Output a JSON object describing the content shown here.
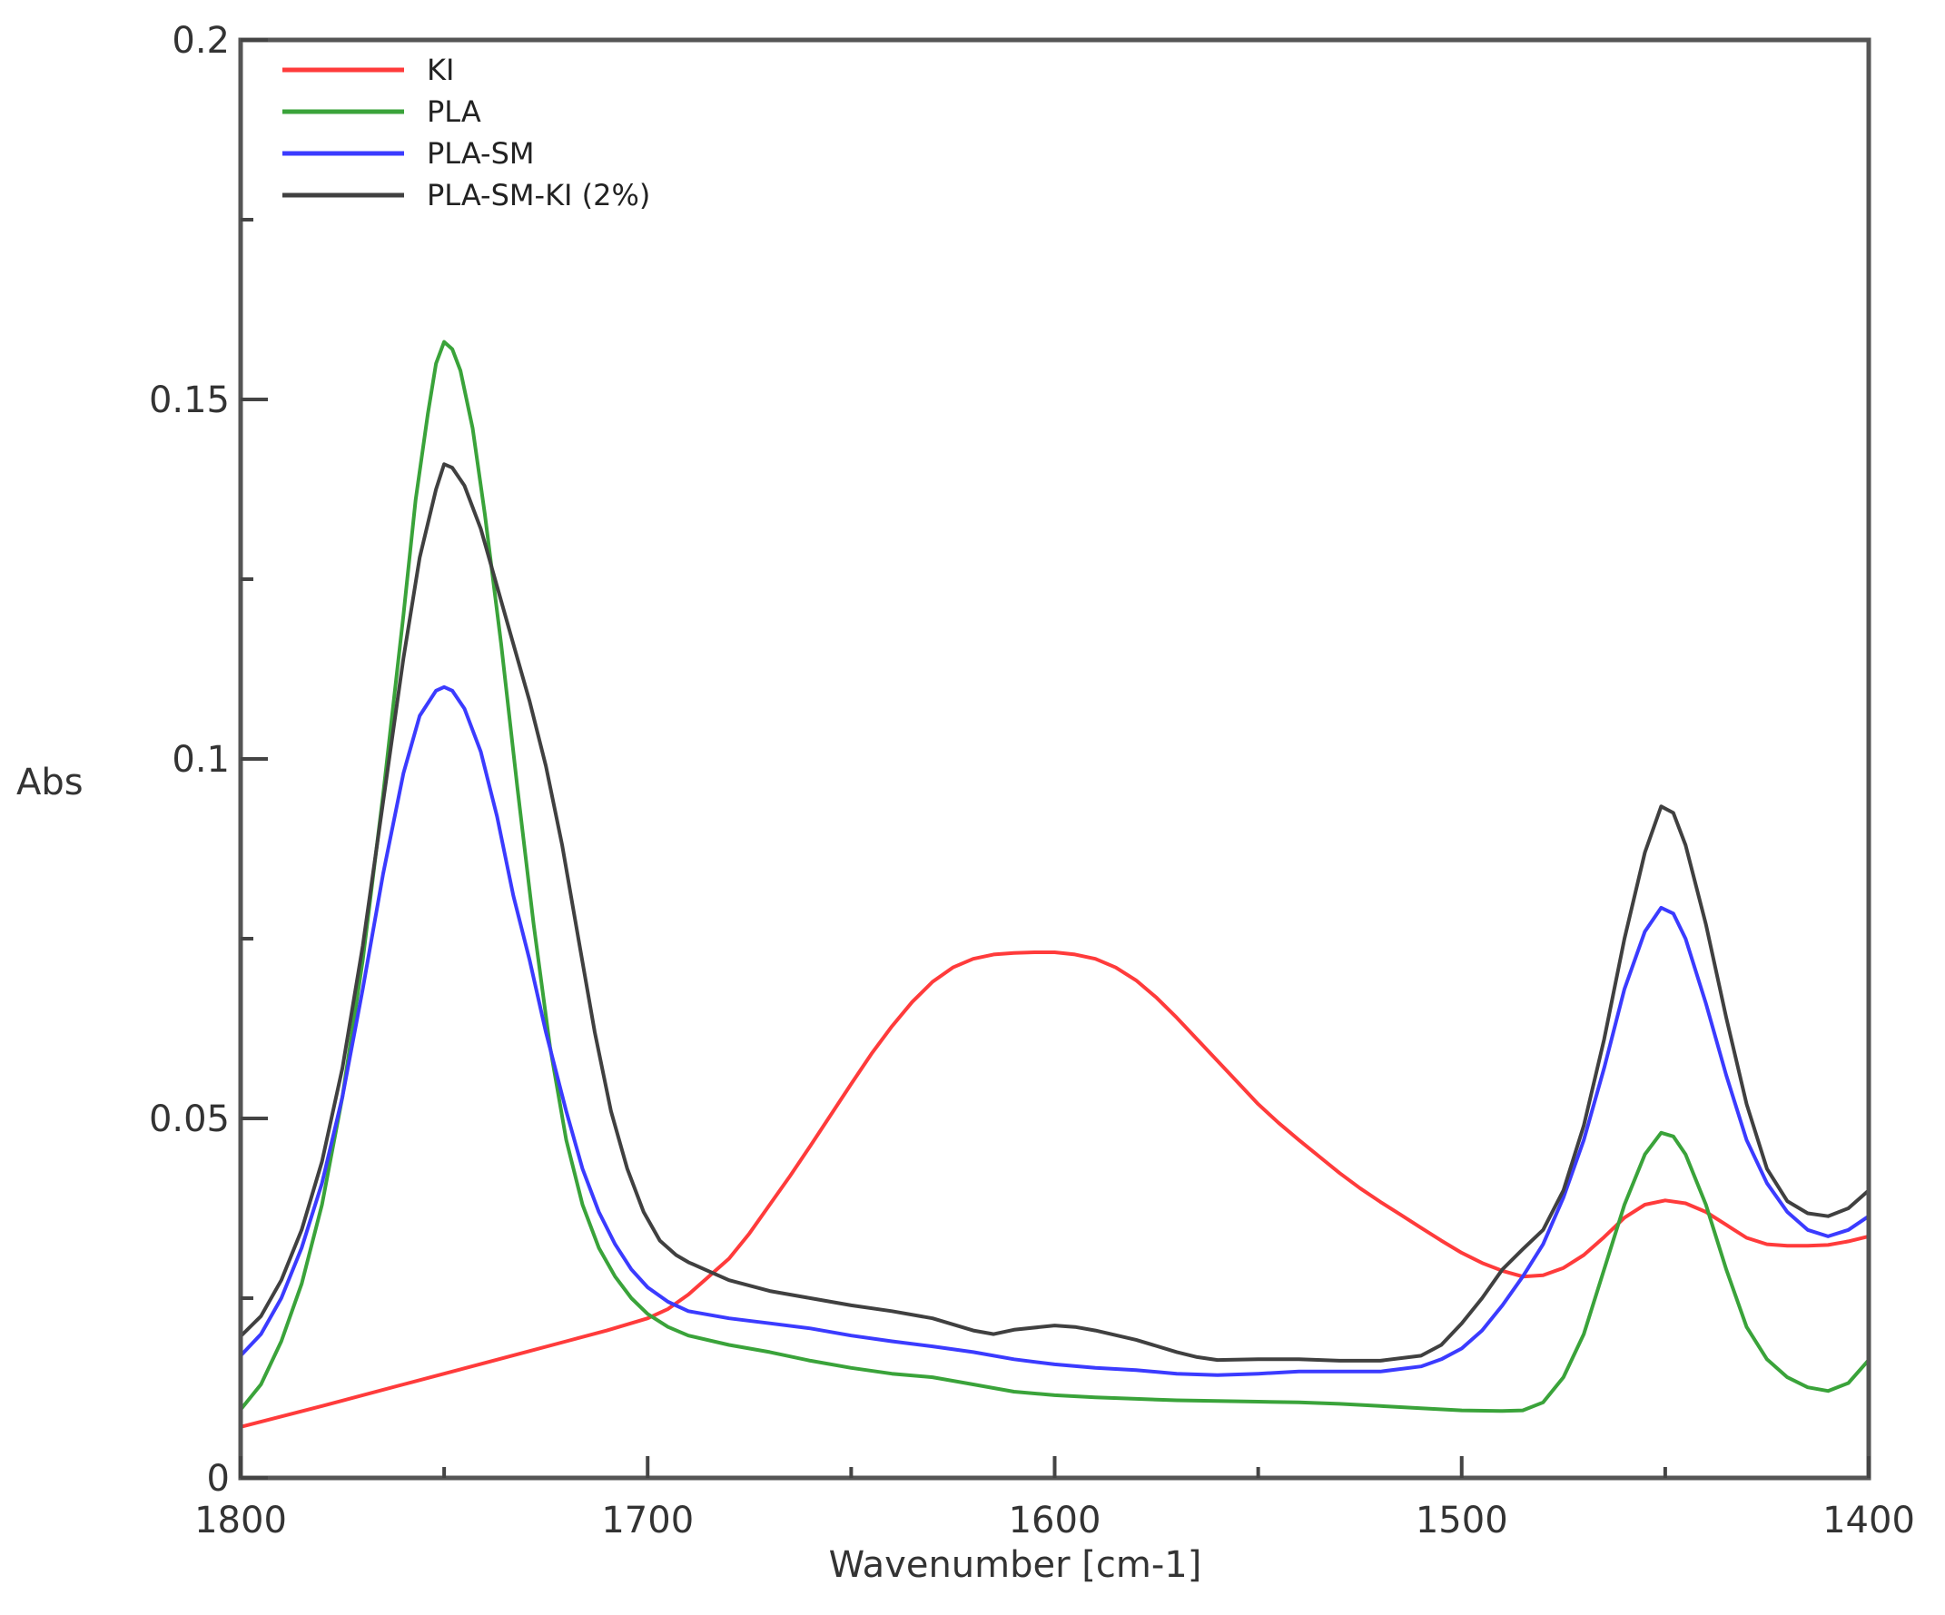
{
  "chart_data": {
    "type": "line",
    "title": "",
    "xlabel": "Wavenumber [cm-1]",
    "ylabel": "Abs",
    "xlim": [
      1800,
      1400
    ],
    "ylim": [
      0,
      0.2
    ],
    "x_reversed": true,
    "grid": false,
    "legend_position": "upper-left",
    "x_ticks": [
      1800,
      1700,
      1600,
      1500,
      1400
    ],
    "x_tick_labels": [
      "1800",
      "1700",
      "1600",
      "1500",
      "1400"
    ],
    "x_minor_ticks": [
      1750,
      1650,
      1550,
      1450
    ],
    "y_ticks": [
      0,
      0.05,
      0.1,
      0.15,
      0.2
    ],
    "y_tick_labels": [
      "0",
      "0.05",
      "0.1",
      "0.15",
      "0.2"
    ],
    "y_minor_ticks": [
      0.025,
      0.075,
      0.125,
      0.175
    ],
    "series": [
      {
        "name": "KI",
        "color": "#ff3b3b",
        "points": [
          [
            1800,
            0.0071
          ],
          [
            1780,
            0.01
          ],
          [
            1760,
            0.013
          ],
          [
            1750,
            0.0145
          ],
          [
            1740,
            0.016
          ],
          [
            1730,
            0.0175
          ],
          [
            1720,
            0.019
          ],
          [
            1710,
            0.0205
          ],
          [
            1700,
            0.0222
          ],
          [
            1695,
            0.0235
          ],
          [
            1690,
            0.0255
          ],
          [
            1685,
            0.028
          ],
          [
            1680,
            0.0305
          ],
          [
            1675,
            0.034
          ],
          [
            1670,
            0.038
          ],
          [
            1665,
            0.042
          ],
          [
            1660,
            0.0462
          ],
          [
            1655,
            0.0505
          ],
          [
            1650,
            0.0548
          ],
          [
            1645,
            0.059
          ],
          [
            1640,
            0.0628
          ],
          [
            1635,
            0.0662
          ],
          [
            1630,
            0.069
          ],
          [
            1625,
            0.071
          ],
          [
            1620,
            0.0722
          ],
          [
            1615,
            0.0728
          ],
          [
            1610,
            0.073
          ],
          [
            1605,
            0.0731
          ],
          [
            1600,
            0.0731
          ],
          [
            1595,
            0.0728
          ],
          [
            1590,
            0.0722
          ],
          [
            1585,
            0.071
          ],
          [
            1580,
            0.0692
          ],
          [
            1575,
            0.0668
          ],
          [
            1570,
            0.064
          ],
          [
            1565,
            0.061
          ],
          [
            1560,
            0.058
          ],
          [
            1555,
            0.055
          ],
          [
            1550,
            0.052
          ],
          [
            1545,
            0.0494
          ],
          [
            1540,
            0.047
          ],
          [
            1535,
            0.0447
          ],
          [
            1530,
            0.0424
          ],
          [
            1525,
            0.0403
          ],
          [
            1520,
            0.0384
          ],
          [
            1515,
            0.0366
          ],
          [
            1510,
            0.0348
          ],
          [
            1505,
            0.033
          ],
          [
            1500,
            0.0313
          ],
          [
            1495,
            0.0299
          ],
          [
            1490,
            0.0288
          ],
          [
            1485,
            0.028
          ],
          [
            1480,
            0.0282
          ],
          [
            1475,
            0.0292
          ],
          [
            1470,
            0.031
          ],
          [
            1465,
            0.0335
          ],
          [
            1460,
            0.0362
          ],
          [
            1455,
            0.038
          ],
          [
            1450,
            0.0386
          ],
          [
            1445,
            0.0382
          ],
          [
            1440,
            0.037
          ],
          [
            1435,
            0.0352
          ],
          [
            1430,
            0.0334
          ],
          [
            1425,
            0.0325
          ],
          [
            1420,
            0.0323
          ],
          [
            1415,
            0.0323
          ],
          [
            1410,
            0.0324
          ],
          [
            1405,
            0.0329
          ],
          [
            1400,
            0.0336
          ]
        ]
      },
      {
        "name": "PLA",
        "color": "#3aa33a",
        "points": [
          [
            1800,
            0.0095
          ],
          [
            1795,
            0.013
          ],
          [
            1790,
            0.019
          ],
          [
            1785,
            0.027
          ],
          [
            1780,
            0.038
          ],
          [
            1775,
            0.053
          ],
          [
            1770,
            0.072
          ],
          [
            1765,
            0.095
          ],
          [
            1760,
            0.12
          ],
          [
            1757,
            0.136
          ],
          [
            1754,
            0.148
          ],
          [
            1752,
            0.155
          ],
          [
            1750,
            0.158
          ],
          [
            1748,
            0.157
          ],
          [
            1746,
            0.154
          ],
          [
            1743,
            0.146
          ],
          [
            1740,
            0.134
          ],
          [
            1736,
            0.116
          ],
          [
            1732,
            0.096
          ],
          [
            1728,
            0.077
          ],
          [
            1724,
            0.06
          ],
          [
            1720,
            0.047
          ],
          [
            1716,
            0.038
          ],
          [
            1712,
            0.032
          ],
          [
            1708,
            0.028
          ],
          [
            1704,
            0.025
          ],
          [
            1700,
            0.0228
          ],
          [
            1695,
            0.021
          ],
          [
            1690,
            0.0198
          ],
          [
            1680,
            0.0185
          ],
          [
            1670,
            0.0175
          ],
          [
            1660,
            0.0163
          ],
          [
            1650,
            0.0153
          ],
          [
            1640,
            0.0145
          ],
          [
            1630,
            0.014
          ],
          [
            1620,
            0.013
          ],
          [
            1610,
            0.012
          ],
          [
            1600,
            0.0115
          ],
          [
            1590,
            0.0112
          ],
          [
            1580,
            0.011
          ],
          [
            1570,
            0.0108
          ],
          [
            1560,
            0.0107
          ],
          [
            1550,
            0.0106
          ],
          [
            1540,
            0.0105
          ],
          [
            1530,
            0.0103
          ],
          [
            1520,
            0.01
          ],
          [
            1510,
            0.0097
          ],
          [
            1500,
            0.0094
          ],
          [
            1490,
            0.0093
          ],
          [
            1485,
            0.0094
          ],
          [
            1480,
            0.0105
          ],
          [
            1475,
            0.014
          ],
          [
            1470,
            0.02
          ],
          [
            1465,
            0.029
          ],
          [
            1460,
            0.038
          ],
          [
            1455,
            0.045
          ],
          [
            1451,
            0.048
          ],
          [
            1448,
            0.0475
          ],
          [
            1445,
            0.045
          ],
          [
            1440,
            0.038
          ],
          [
            1435,
            0.029
          ],
          [
            1430,
            0.021
          ],
          [
            1425,
            0.0165
          ],
          [
            1420,
            0.014
          ],
          [
            1415,
            0.0126
          ],
          [
            1410,
            0.0121
          ],
          [
            1405,
            0.0132
          ],
          [
            1400,
            0.0164
          ]
        ]
      },
      {
        "name": "PLA-SM",
        "color": "#3b3bff",
        "points": [
          [
            1800,
            0.017
          ],
          [
            1795,
            0.02
          ],
          [
            1790,
            0.025
          ],
          [
            1785,
            0.032
          ],
          [
            1780,
            0.041
          ],
          [
            1775,
            0.053
          ],
          [
            1770,
            0.068
          ],
          [
            1765,
            0.084
          ],
          [
            1760,
            0.098
          ],
          [
            1756,
            0.106
          ],
          [
            1752,
            0.1095
          ],
          [
            1750,
            0.11
          ],
          [
            1748,
            0.1095
          ],
          [
            1745,
            0.107
          ],
          [
            1741,
            0.101
          ],
          [
            1737,
            0.092
          ],
          [
            1733,
            0.081
          ],
          [
            1729,
            0.072
          ],
          [
            1725,
            0.062
          ],
          [
            1720,
            0.051
          ],
          [
            1716,
            0.043
          ],
          [
            1712,
            0.037
          ],
          [
            1708,
            0.0325
          ],
          [
            1704,
            0.029
          ],
          [
            1700,
            0.0265
          ],
          [
            1695,
            0.0245
          ],
          [
            1690,
            0.0232
          ],
          [
            1680,
            0.0222
          ],
          [
            1670,
            0.0215
          ],
          [
            1660,
            0.0208
          ],
          [
            1650,
            0.0198
          ],
          [
            1640,
            0.019
          ],
          [
            1630,
            0.0183
          ],
          [
            1620,
            0.0175
          ],
          [
            1610,
            0.0165
          ],
          [
            1600,
            0.0158
          ],
          [
            1590,
            0.0153
          ],
          [
            1580,
            0.015
          ],
          [
            1570,
            0.0145
          ],
          [
            1560,
            0.0143
          ],
          [
            1550,
            0.0145
          ],
          [
            1540,
            0.0148
          ],
          [
            1530,
            0.0148
          ],
          [
            1520,
            0.0148
          ],
          [
            1510,
            0.0155
          ],
          [
            1505,
            0.0165
          ],
          [
            1500,
            0.018
          ],
          [
            1495,
            0.0205
          ],
          [
            1490,
            0.024
          ],
          [
            1485,
            0.028
          ],
          [
            1480,
            0.0325
          ],
          [
            1475,
            0.039
          ],
          [
            1470,
            0.047
          ],
          [
            1465,
            0.057
          ],
          [
            1460,
            0.068
          ],
          [
            1455,
            0.076
          ],
          [
            1451,
            0.0793
          ],
          [
            1448,
            0.0785
          ],
          [
            1445,
            0.075
          ],
          [
            1440,
            0.066
          ],
          [
            1435,
            0.056
          ],
          [
            1430,
            0.047
          ],
          [
            1425,
            0.041
          ],
          [
            1420,
            0.037
          ],
          [
            1415,
            0.0345
          ],
          [
            1410,
            0.0336
          ],
          [
            1405,
            0.0345
          ],
          [
            1400,
            0.0364
          ]
        ]
      },
      {
        "name": "PLA-SM-KI (2%)",
        "color": "#404040",
        "points": [
          [
            1800,
            0.0197
          ],
          [
            1795,
            0.0225
          ],
          [
            1790,
            0.0275
          ],
          [
            1785,
            0.0345
          ],
          [
            1780,
            0.044
          ],
          [
            1775,
            0.057
          ],
          [
            1770,
            0.074
          ],
          [
            1765,
            0.094
          ],
          [
            1760,
            0.114
          ],
          [
            1756,
            0.128
          ],
          [
            1752,
            0.1375
          ],
          [
            1750,
            0.141
          ],
          [
            1748,
            0.1405
          ],
          [
            1745,
            0.138
          ],
          [
            1741,
            0.132
          ],
          [
            1737,
            0.124
          ],
          [
            1733,
            0.116
          ],
          [
            1729,
            0.108
          ],
          [
            1725,
            0.099
          ],
          [
            1721,
            0.088
          ],
          [
            1717,
            0.075
          ],
          [
            1713,
            0.062
          ],
          [
            1709,
            0.051
          ],
          [
            1705,
            0.043
          ],
          [
            1701,
            0.037
          ],
          [
            1697,
            0.033
          ],
          [
            1693,
            0.031
          ],
          [
            1690,
            0.03
          ],
          [
            1680,
            0.0275
          ],
          [
            1670,
            0.026
          ],
          [
            1660,
            0.025
          ],
          [
            1650,
            0.024
          ],
          [
            1640,
            0.0232
          ],
          [
            1630,
            0.0222
          ],
          [
            1620,
            0.0205
          ],
          [
            1615,
            0.02
          ],
          [
            1610,
            0.0206
          ],
          [
            1600,
            0.0212
          ],
          [
            1595,
            0.021
          ],
          [
            1590,
            0.0205
          ],
          [
            1580,
            0.0192
          ],
          [
            1570,
            0.0175
          ],
          [
            1565,
            0.0168
          ],
          [
            1560,
            0.0164
          ],
          [
            1550,
            0.0165
          ],
          [
            1540,
            0.0165
          ],
          [
            1530,
            0.0163
          ],
          [
            1520,
            0.0163
          ],
          [
            1510,
            0.017
          ],
          [
            1505,
            0.0185
          ],
          [
            1500,
            0.0215
          ],
          [
            1495,
            0.025
          ],
          [
            1490,
            0.029
          ],
          [
            1485,
            0.0318
          ],
          [
            1480,
            0.0345
          ],
          [
            1475,
            0.04
          ],
          [
            1470,
            0.049
          ],
          [
            1465,
            0.061
          ],
          [
            1460,
            0.075
          ],
          [
            1455,
            0.087
          ],
          [
            1451,
            0.0934
          ],
          [
            1448,
            0.0925
          ],
          [
            1445,
            0.088
          ],
          [
            1440,
            0.077
          ],
          [
            1435,
            0.064
          ],
          [
            1430,
            0.052
          ],
          [
            1425,
            0.043
          ],
          [
            1420,
            0.0385
          ],
          [
            1415,
            0.0368
          ],
          [
            1410,
            0.0364
          ],
          [
            1405,
            0.0375
          ],
          [
            1400,
            0.04
          ]
        ]
      }
    ]
  }
}
